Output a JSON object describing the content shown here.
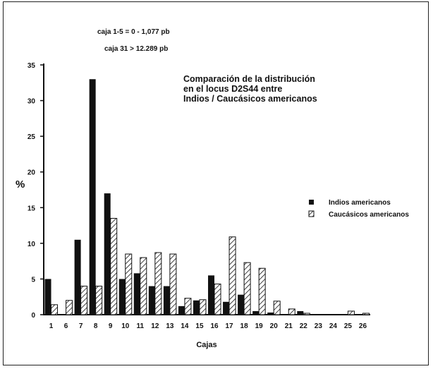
{
  "notes": [
    "caja 1-5 = 0 - 1,077 pb",
    "caja 31 > 12.289 pb"
  ],
  "chart_data": {
    "type": "bar",
    "title_lines": [
      "Comparación de la distribución",
      "en el locus D2S44 entre",
      "Indios / Caucásicos americanos"
    ],
    "xlabel": "Cajas",
    "ylabel": "%",
    "ylim": [
      0,
      35
    ],
    "yticks": [
      0,
      5,
      10,
      15,
      20,
      25,
      30,
      35
    ],
    "categories": [
      "1",
      "6",
      "7",
      "8",
      "9",
      "10",
      "11",
      "12",
      "13",
      "14",
      "15",
      "16",
      "17",
      "18",
      "19",
      "20",
      "21",
      "22",
      "23",
      "24",
      "25",
      "26"
    ],
    "series": [
      {
        "name": "Indios americanos",
        "fill": "solid",
        "values": [
          5,
          0,
          10.5,
          33,
          17,
          5,
          5.8,
          4,
          4,
          1.2,
          2,
          5.5,
          1.8,
          2.8,
          0.5,
          0.3,
          0,
          0.5,
          0,
          0,
          0,
          0
        ]
      },
      {
        "name": "Caucásicos americanos",
        "fill": "hatched",
        "values": [
          1.4,
          2,
          4,
          4,
          13.5,
          8.5,
          8,
          8.7,
          8.5,
          2.3,
          2.1,
          4.3,
          10.9,
          7.3,
          6.5,
          1.9,
          0.8,
          0.2,
          0,
          0,
          0.5,
          0.2
        ]
      }
    ],
    "legend_position": "right",
    "grid": false
  }
}
